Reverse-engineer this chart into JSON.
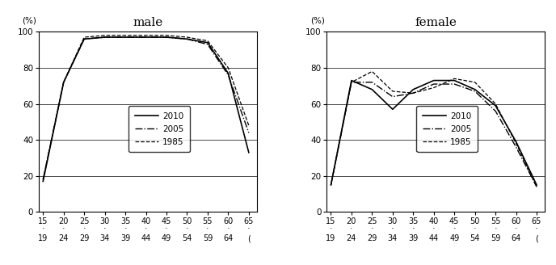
{
  "age_labels_top": [
    "15",
    "20",
    "25",
    "30",
    "35",
    "40",
    "45",
    "50",
    "55",
    "60",
    "65"
  ],
  "age_labels_bottom": [
    "19",
    "24",
    "29",
    "34",
    "39",
    "44",
    "49",
    "54",
    "59",
    "64",
    "("
  ],
  "age_x": [
    15,
    20,
    25,
    30,
    35,
    40,
    45,
    50,
    55,
    60,
    65
  ],
  "male": {
    "2010": [
      17,
      72,
      96,
      97,
      97,
      97,
      97,
      96,
      94,
      77,
      33
    ],
    "2005": [
      18,
      72,
      96,
      97,
      97,
      97,
      97,
      96,
      93,
      76,
      44
    ],
    "1985": [
      18,
      72,
      97,
      98,
      98,
      98,
      98,
      97,
      95,
      80,
      48
    ]
  },
  "female": {
    "2010": [
      15,
      73,
      68,
      57,
      68,
      73,
      73,
      68,
      59,
      39,
      15
    ],
    "2005": [
      15,
      72,
      72,
      64,
      66,
      71,
      71,
      67,
      56,
      36,
      14
    ],
    "1985": [
      15,
      72,
      78,
      67,
      66,
      69,
      74,
      72,
      60,
      38,
      14
    ]
  },
  "line_styles": {
    "2010": {
      "linestyle": "-",
      "linewidth": 1.2,
      "color": "black"
    },
    "2005": {
      "linestyle": "-.",
      "linewidth": 1.0,
      "color": "black"
    },
    "1985": {
      "linestyle": "--",
      "linewidth": 0.9,
      "color": "black"
    }
  },
  "ylabel": "(%)",
  "ylim": [
    0,
    100
  ],
  "yticks": [
    0,
    20,
    40,
    60,
    80,
    100
  ],
  "title_male": "male",
  "title_female": "female",
  "bg_color": "#ffffff",
  "plot_bg_color": "#ffffff"
}
